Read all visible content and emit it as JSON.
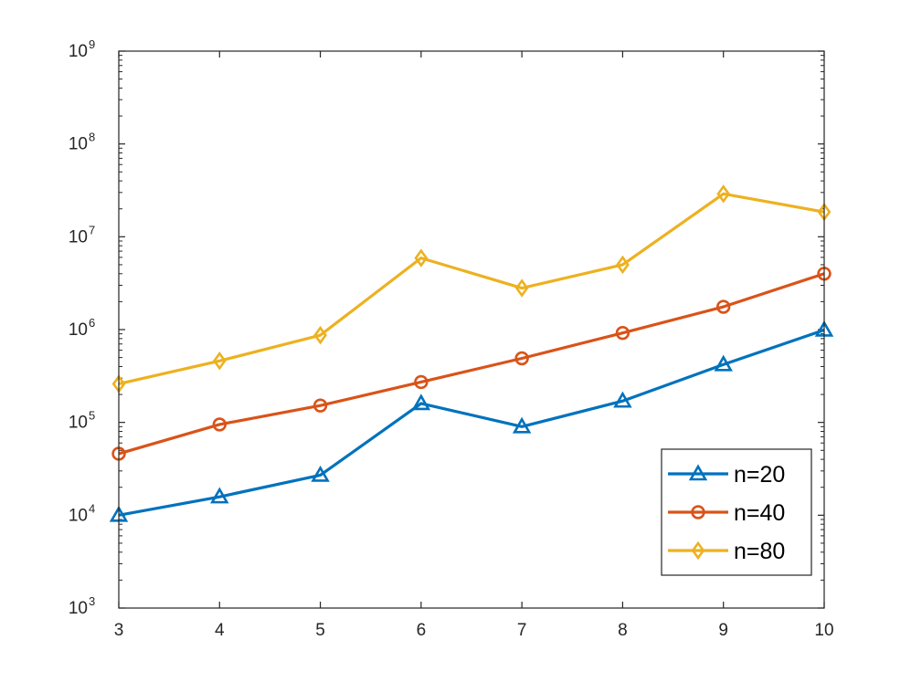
{
  "chart_data": {
    "type": "line",
    "title": "",
    "xlabel": "",
    "ylabel": "",
    "x": [
      3,
      4,
      5,
      6,
      7,
      8,
      9,
      10
    ],
    "xlim": [
      3,
      10
    ],
    "ylim": [
      1000,
      1000000000
    ],
    "yscale": "log",
    "x_tick_labels": [
      "3",
      "4",
      "5",
      "6",
      "7",
      "8",
      "9",
      "10"
    ],
    "y_ticks": [
      {
        "base": "10",
        "exp": "3"
      },
      {
        "base": "10",
        "exp": "4"
      },
      {
        "base": "10",
        "exp": "5"
      },
      {
        "base": "10",
        "exp": "6"
      },
      {
        "base": "10",
        "exp": "7"
      },
      {
        "base": "10",
        "exp": "8"
      },
      {
        "base": "10",
        "exp": "9"
      }
    ],
    "grid": false,
    "legend_position": "bottom-right",
    "series": [
      {
        "name": "n=20",
        "color": "#0072BD",
        "marker": "triangle",
        "values": [
          10000,
          15800,
          27000,
          160000,
          90000,
          170000,
          420000,
          990000
        ]
      },
      {
        "name": "n=40",
        "color": "#D95319",
        "marker": "circle",
        "values": [
          46000,
          95000,
          152000,
          272000,
          490000,
          920000,
          1760000,
          4000000
        ]
      },
      {
        "name": "n=80",
        "color": "#EDB120",
        "marker": "diamond",
        "values": [
          260000,
          460000,
          870000,
          5900000,
          2800000,
          5000000,
          29000000,
          18500000
        ]
      }
    ]
  }
}
